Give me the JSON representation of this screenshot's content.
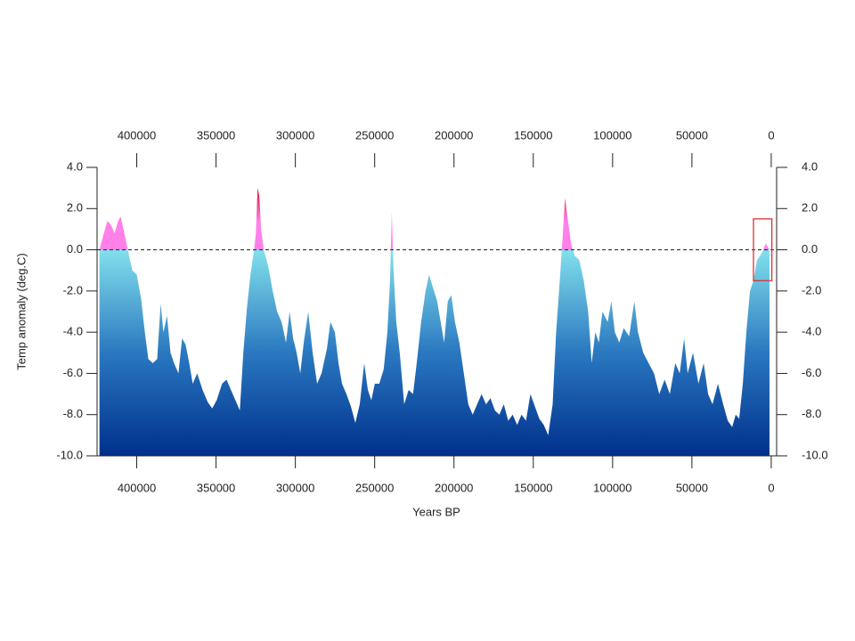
{
  "chart_data": {
    "type": "area",
    "x_label": "Years BP",
    "y_label": "Temp anomaly (deg.C)",
    "xlim": [
      425000,
      -3400
    ],
    "xticks": [
      400000,
      350000,
      300000,
      250000,
      200000,
      150000,
      100000,
      50000,
      0
    ],
    "ylim": [
      -10,
      4
    ],
    "yticks": [
      {
        "value": 4,
        "label": "4.0"
      },
      {
        "value": 2,
        "label": "2.0"
      },
      {
        "value": 0,
        "label": "0.0"
      },
      {
        "value": -2,
        "label": "-2.0"
      },
      {
        "value": -4,
        "label": "-4.0"
      },
      {
        "value": -6,
        "label": "-6.0"
      },
      {
        "value": -8,
        "label": "-8.0"
      },
      {
        "value": -10,
        "label": "-10.0"
      }
    ],
    "reference_line": {
      "value": 0,
      "style": "dashed",
      "color": "#333333"
    },
    "highlight_box": {
      "x": [
        11200,
        -400
      ],
      "y": [
        1.5,
        -1.5
      ],
      "color": "#e03030"
    },
    "fill_gradient": [
      {
        "value": 3,
        "color": "#d8102a"
      },
      {
        "value": 1.4,
        "color": "#ff80e8"
      },
      {
        "value": 0,
        "color": "#ff80e8"
      },
      {
        "value": 0,
        "color": "#82e0ec"
      },
      {
        "value": -5,
        "color": "#2a78c0"
      },
      {
        "value": -10,
        "color": "#00308c"
      }
    ],
    "x": [
      423500,
      420700,
      418500,
      416200,
      414000,
      411700,
      410100,
      407800,
      405600,
      402800,
      400000,
      397200,
      394900,
      392700,
      389900,
      387100,
      384900,
      383200,
      380900,
      378700,
      376500,
      373700,
      371400,
      369200,
      366900,
      364700,
      361900,
      358500,
      355200,
      352400,
      349600,
      346200,
      343400,
      340600,
      337800,
      335000,
      332800,
      330500,
      328300,
      326000,
      324900,
      323800,
      322700,
      321600,
      319900,
      317100,
      314300,
      311500,
      308700,
      305900,
      303600,
      301400,
      299200,
      296900,
      294700,
      291900,
      289100,
      286300,
      283500,
      280100,
      277900,
      275100,
      272800,
      270600,
      267800,
      265000,
      262200,
      259400,
      256600,
      254300,
      252100,
      249900,
      247100,
      244300,
      242000,
      240300,
      239200,
      238100,
      236400,
      234200,
      231400,
      228600,
      225800,
      223500,
      220700,
      217900,
      215700,
      213400,
      210600,
      208400,
      206200,
      203900,
      201700,
      199400,
      196600,
      193800,
      191000,
      188200,
      185400,
      182600,
      179800,
      177000,
      174200,
      171400,
      168600,
      165800,
      163000,
      160200,
      157400,
      154600,
      151800,
      149000,
      146200,
      143400,
      140600,
      137800,
      135600,
      133300,
      131600,
      130000,
      128300,
      126000,
      123800,
      121000,
      118200,
      115400,
      113200,
      110900,
      108700,
      106400,
      103100,
      100800,
      98600,
      95800,
      93000,
      89600,
      86300,
      84000,
      80700,
      77300,
      73900,
      70600,
      67200,
      63900,
      60500,
      57700,
      54900,
      52700,
      49300,
      45900,
      42600,
      39800,
      37000,
      33600,
      30300,
      27400,
      24600,
      22400,
      20200,
      17900,
      15700,
      13400,
      11200,
      9000,
      6200,
      3400,
      1100
    ],
    "values": [
      0,
      0.8,
      1.4,
      1.2,
      0.8,
      1.4,
      1.6,
      0.8,
      0,
      -1,
      -1.2,
      -2.4,
      -4,
      -5.3,
      -5.5,
      -5.3,
      -2.6,
      -4,
      -3.2,
      -5,
      -5.5,
      -6,
      -4.3,
      -4.6,
      -5.5,
      -6.5,
      -6,
      -6.8,
      -7.4,
      -7.7,
      -7.3,
      -6.5,
      -6.3,
      -6.8,
      -7.3,
      -7.8,
      -5,
      -2.8,
      -1.2,
      0,
      0.8,
      3,
      2.6,
      1,
      0,
      -0.8,
      -2,
      -3,
      -3.5,
      -4.5,
      -3,
      -4.3,
      -5,
      -6,
      -4.5,
      -3,
      -5,
      -6.5,
      -6,
      -4.8,
      -3.5,
      -4,
      -5.5,
      -6.5,
      -7,
      -7.6,
      -8.4,
      -7.5,
      -5.5,
      -6.8,
      -7.3,
      -6.5,
      -6.5,
      -5.8,
      -4,
      -1.5,
      1.8,
      -1,
      -3.5,
      -5,
      -7.5,
      -6.8,
      -7,
      -5.5,
      -3.5,
      -2,
      -1.2,
      -1.8,
      -2.5,
      -3.5,
      -4.5,
      -2.5,
      -2.2,
      -3.5,
      -4.5,
      -6,
      -7.5,
      -8,
      -7.5,
      -7,
      -7.5,
      -7.2,
      -7.8,
      -8,
      -7.5,
      -8.3,
      -8,
      -8.5,
      -8,
      -8.3,
      -7,
      -7.6,
      -8.2,
      -8.5,
      -9,
      -7.5,
      -4,
      -1.5,
      0.5,
      2.5,
      1.5,
      0.2,
      -0.3,
      -0.5,
      -1.5,
      -3,
      -5.5,
      -4,
      -4.5,
      -3,
      -3.5,
      -2.5,
      -4,
      -4.5,
      -3.8,
      -4.2,
      -2.5,
      -4,
      -5,
      -5.5,
      -6,
      -7,
      -6.3,
      -7,
      -5.5,
      -6,
      -4.3,
      -6,
      -5,
      -6.5,
      -5.5,
      -7,
      -7.5,
      -6.5,
      -7.5,
      -8.3,
      -8.6,
      -8,
      -8.2,
      -6.5,
      -4,
      -2,
      -1.5,
      -0.5,
      -0.2,
      0.3,
      0
    ]
  }
}
